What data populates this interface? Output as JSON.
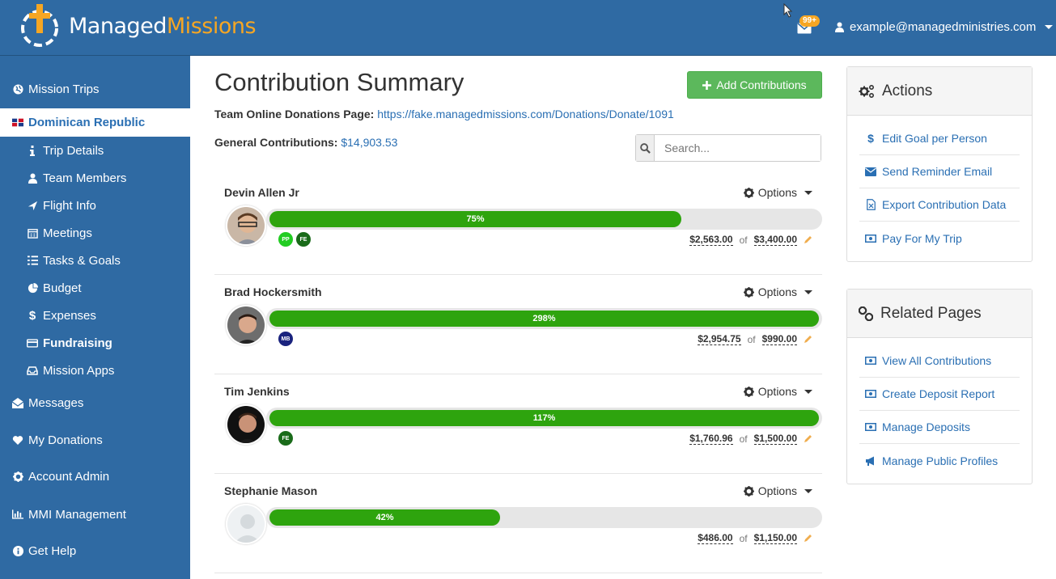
{
  "header": {
    "logo_part1": "Managed",
    "logo_part2": "Missions",
    "notification_count": "99+",
    "user_email": "example@managedministries.com"
  },
  "colors": {
    "brand_blue": "#2f6aa3",
    "brand_orange": "#f6a623",
    "success_green": "#5cb85c",
    "progress_green": "#2ea40e",
    "link_blue": "#2a6fb3"
  },
  "sidebar": {
    "items": [
      {
        "label": "Mission Trips",
        "icon": "globe-icon"
      },
      {
        "label": "Dominican Republic",
        "icon": "dominican-flag-icon"
      },
      {
        "label": "Trip Details",
        "icon": "info-icon"
      },
      {
        "label": "Team Members",
        "icon": "user-icon"
      },
      {
        "label": "Flight Info",
        "icon": "plane-icon"
      },
      {
        "label": "Meetings",
        "icon": "calendar-icon"
      },
      {
        "label": "Tasks & Goals",
        "icon": "list-icon"
      },
      {
        "label": "Budget",
        "icon": "pie-chart-icon"
      },
      {
        "label": "Expenses",
        "icon": "dollar-icon"
      },
      {
        "label": "Fundraising",
        "icon": "credit-card-icon"
      },
      {
        "label": "Mission Apps",
        "icon": "inbox-icon"
      },
      {
        "label": "Messages",
        "icon": "envelope-open-icon"
      },
      {
        "label": "My Donations",
        "icon": "heart-icon"
      },
      {
        "label": "Account Admin",
        "icon": "gear-icon"
      },
      {
        "label": "MMI Management",
        "icon": "bar-chart-icon"
      },
      {
        "label": "Get Help",
        "icon": "info-circle-icon"
      }
    ]
  },
  "main": {
    "title": "Contribution Summary",
    "add_button_label": "Add Contributions",
    "donations_page_label": "Team Online Donations Page:",
    "donations_page_url": "https://fake.managedmissions.com/Donations/Donate/1091",
    "general_contributions_label": "General Contributions:",
    "general_contributions_value": "$14,903.53",
    "search_placeholder": "Search...",
    "options_label": "Options",
    "of_label": "of",
    "members": [
      {
        "name": "Devin Allen Jr",
        "percent_label": "75%",
        "progress": 0.75,
        "raised": "$2,563.00",
        "goal": "$3,400.00",
        "badges": [
          {
            "text": "PP",
            "color": "#22cc22"
          },
          {
            "text": "FE",
            "color": "#1a6b1a"
          }
        ]
      },
      {
        "name": "Brad Hockersmith",
        "percent_label": "298%",
        "progress": 1.0,
        "raised": "$2,954.75",
        "goal": "$990.00",
        "badges": [
          {
            "text": "MB",
            "color": "#1a237e"
          }
        ]
      },
      {
        "name": "Tim Jenkins",
        "percent_label": "117%",
        "progress": 1.0,
        "raised": "$1,760.96",
        "goal": "$1,500.00",
        "badges": [
          {
            "text": "FE",
            "color": "#1a6b1a"
          }
        ]
      },
      {
        "name": "Stephanie Mason",
        "percent_label": "42%",
        "progress": 0.42,
        "raised": "$486.00",
        "goal": "$1,150.00",
        "badges": []
      }
    ]
  },
  "actions_panel": {
    "title": "Actions",
    "links": [
      {
        "label": "Edit Goal per Person",
        "icon": "dollar-icon"
      },
      {
        "label": "Send Reminder Email",
        "icon": "envelope-icon"
      },
      {
        "label": "Export Contribution Data",
        "icon": "file-excel-icon"
      },
      {
        "label": "Pay For My Trip",
        "icon": "money-icon"
      }
    ]
  },
  "related_panel": {
    "title": "Related Pages",
    "links": [
      {
        "label": "View All Contributions",
        "icon": "money-icon"
      },
      {
        "label": "Create Deposit Report",
        "icon": "money-icon"
      },
      {
        "label": "Manage Deposits",
        "icon": "money-icon"
      },
      {
        "label": "Manage Public Profiles",
        "icon": "bullhorn-icon"
      }
    ]
  }
}
